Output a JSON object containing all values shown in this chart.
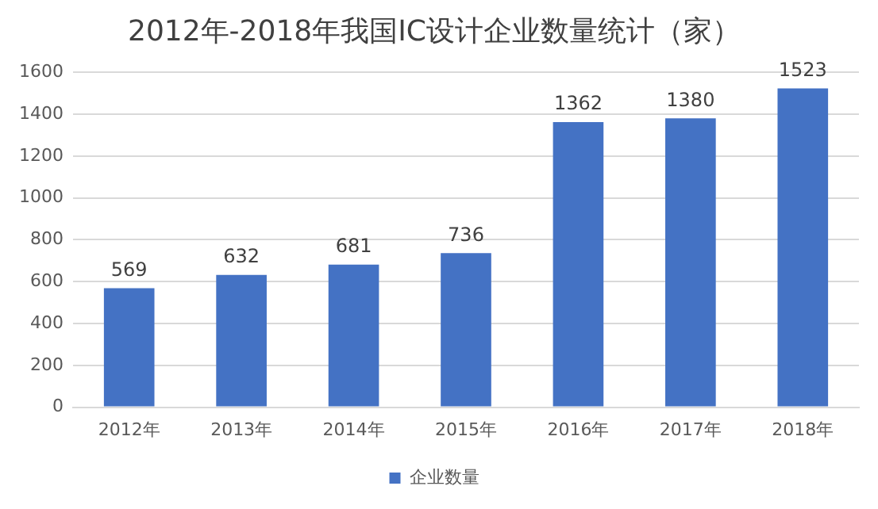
{
  "chart_data": {
    "type": "bar",
    "title": "2012年-2018年我国IC设计企业数量统计（家）",
    "categories": [
      "2012年",
      "2013年",
      "2014年",
      "2015年",
      "2016年",
      "2017年",
      "2018年"
    ],
    "series": [
      {
        "name": "企业数量",
        "color": "#4472c4",
        "values": [
          569,
          632,
          681,
          736,
          1362,
          1380,
          1523
        ]
      }
    ],
    "ylim": [
      0,
      1600
    ],
    "yticks": [
      0,
      200,
      400,
      600,
      800,
      1000,
      1200,
      1400,
      1600
    ],
    "grid": "y",
    "legend": "bottom",
    "data_labels": true
  }
}
